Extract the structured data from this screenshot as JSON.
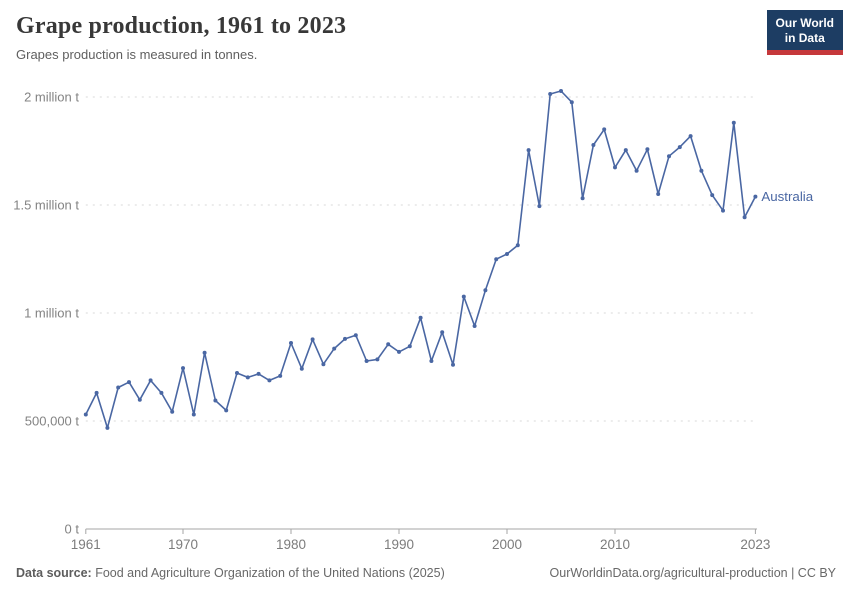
{
  "header": {
    "title": "Grape production, 1961 to 2023",
    "subtitle": "Grapes production is measured in tonnes.",
    "logo": {
      "line1": "Our World",
      "line2": "in Data"
    }
  },
  "colors": {
    "line": "#4a67a3",
    "logo_background": "#1d3d63",
    "logo_underline": "#c5383b",
    "gridline": "#dadada",
    "axis": "#a6a6a6",
    "tick_text": "#838383"
  },
  "chart_data": {
    "type": "line",
    "title": "Grape production, 1961 to 2023",
    "subtitle": "Grapes production is measured in tonnes.",
    "unit": "tonnes",
    "xlim": [
      1961,
      2023
    ],
    "ylim": [
      0,
      2000000
    ],
    "grid": "horizontal-dashed",
    "legend_position": "end-of-line-label",
    "x_ticks": [
      1961,
      1970,
      1980,
      1990,
      2000,
      2010,
      2023
    ],
    "y_ticks": [
      {
        "value": 0,
        "label": "0 t"
      },
      {
        "value": 500000,
        "label": "500,000 t"
      },
      {
        "value": 1000000,
        "label": "1 million t"
      },
      {
        "value": 1500000,
        "label": "1.5 million t"
      },
      {
        "value": 2000000,
        "label": "2 million t"
      }
    ],
    "series": [
      {
        "name": "Australia",
        "color": "#4a67a3",
        "x": [
          1961,
          1962,
          1963,
          1964,
          1965,
          1966,
          1967,
          1968,
          1969,
          1970,
          1971,
          1972,
          1973,
          1974,
          1975,
          1976,
          1977,
          1978,
          1979,
          1980,
          1981,
          1982,
          1983,
          1984,
          1985,
          1986,
          1987,
          1988,
          1989,
          1990,
          1991,
          1992,
          1993,
          1994,
          1995,
          1996,
          1997,
          1998,
          1999,
          2000,
          2001,
          2002,
          2003,
          2004,
          2005,
          2006,
          2007,
          2008,
          2009,
          2010,
          2011,
          2012,
          2013,
          2014,
          2015,
          2016,
          2017,
          2018,
          2019,
          2020,
          2021,
          2022,
          2023
        ],
        "values": [
          530000,
          630000,
          468000,
          655000,
          680000,
          598000,
          688000,
          630000,
          543000,
          745000,
          530000,
          816000,
          595000,
          549000,
          722000,
          702000,
          718000,
          688000,
          709000,
          861000,
          742000,
          878000,
          763000,
          835000,
          880000,
          897000,
          778000,
          785000,
          855000,
          820000,
          846000,
          978000,
          778000,
          911000,
          760000,
          1076000,
          940000,
          1105000,
          1249000,
          1273000,
          1314000,
          1754000,
          1495000,
          2014000,
          2028000,
          1976000,
          1531000,
          1778000,
          1850000,
          1674000,
          1754000,
          1659000,
          1758000,
          1551000,
          1726000,
          1768000,
          1819000,
          1659000,
          1546000,
          1474000,
          1881000,
          1443000,
          1539000
        ]
      }
    ]
  },
  "footer": {
    "source_label": "Data source:",
    "source_text": "Food and Agriculture Organization of the United Nations (2025)",
    "credit": "OurWorldinData.org/agricultural-production | CC BY"
  }
}
